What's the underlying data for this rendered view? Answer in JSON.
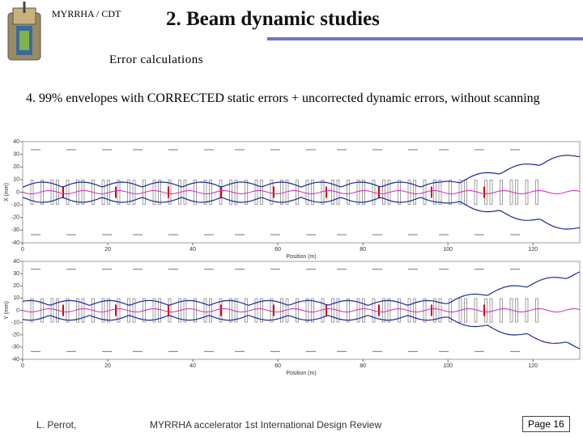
{
  "header": {
    "org": "MYRRHA / CDT",
    "title": "2. Beam dynamic studies",
    "subtitle": "Error calculations"
  },
  "body": {
    "text": "4. 99% envelopes with CORRECTED static errors + uncorrected dynamic errors, without scanning"
  },
  "plots": [
    {
      "ylabel": "X (mm)",
      "xlabel": "Position (m)",
      "xlim": [
        0,
        131
      ],
      "ylim": [
        -40,
        40
      ],
      "xticks": [
        0,
        20,
        40,
        60,
        80,
        100,
        120
      ],
      "yticks": [
        -40,
        -30,
        -20,
        -10,
        0,
        10,
        20,
        30,
        40
      ]
    },
    {
      "ylabel": "Y (mm)",
      "xlabel": "Position (m)",
      "xlim": [
        0,
        131
      ],
      "ylim": [
        -40,
        40
      ],
      "xticks": [
        0,
        20,
        40,
        60,
        80,
        100,
        120
      ],
      "yticks": [
        -40,
        -30,
        -20,
        -10,
        0,
        10,
        20,
        30,
        40
      ]
    }
  ],
  "footer": {
    "author": "L. Perrot,",
    "event": "MYRRHA accelerator 1st International Design Review",
    "page": "Page 16"
  }
}
